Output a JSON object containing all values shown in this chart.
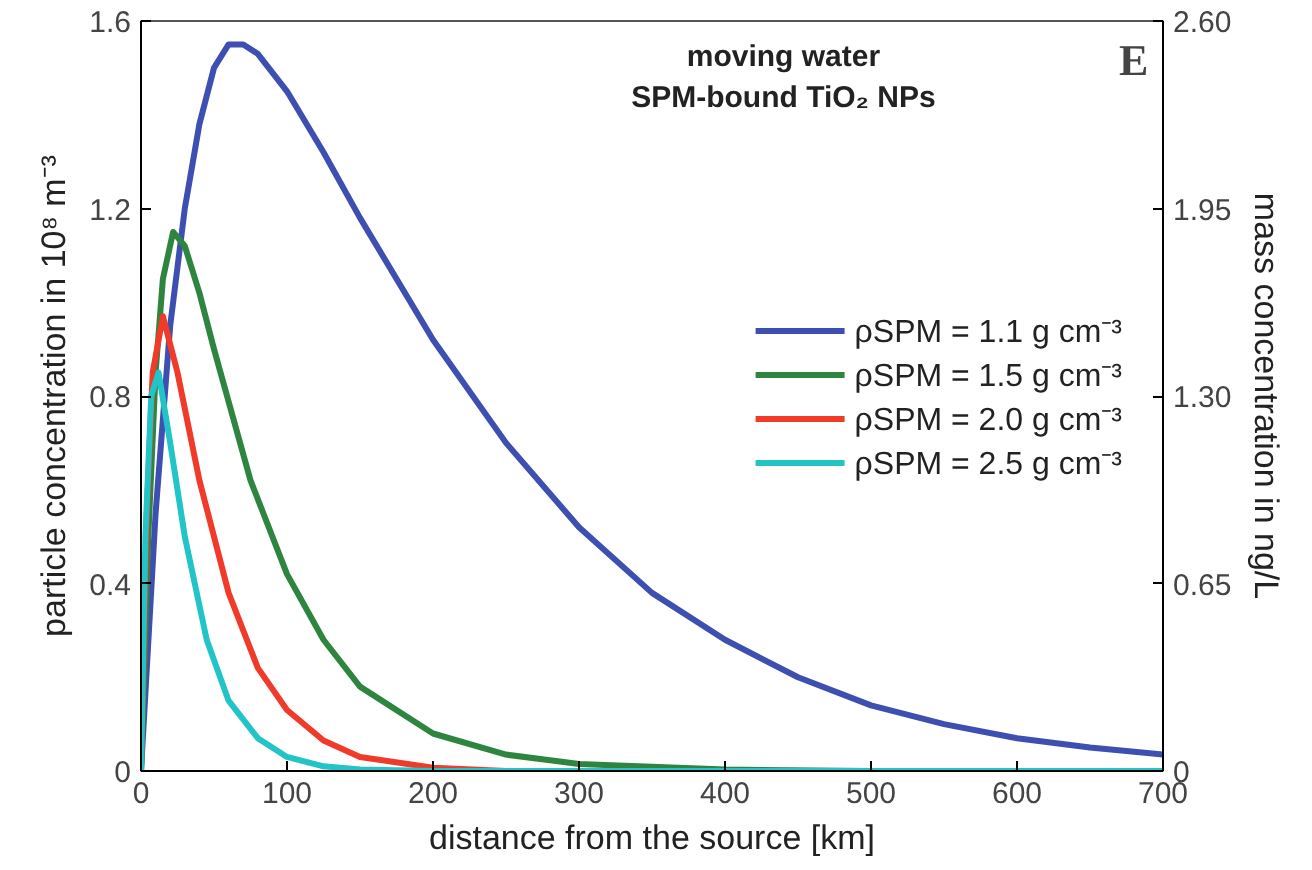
{
  "chart_data": {
    "type": "line",
    "title": "moving water\nSPM-bound TiO₂ NPs",
    "annotations": [
      "E"
    ],
    "xlabel": "distance from the source [km]",
    "ylabel": "particle concentration in 10⁸ m⁻³",
    "y2label": "mass concentration in ng/L",
    "xlim": [
      0,
      700
    ],
    "xticks": [
      0,
      100,
      200,
      300,
      400,
      500,
      600,
      700
    ],
    "ylim": [
      0,
      1.6
    ],
    "yticks": [
      0,
      0.4,
      0.8,
      1.2,
      1.6
    ],
    "y2lim": [
      0,
      2.6
    ],
    "y2ticks": [
      0,
      {
        "value": 0.65,
        "label": "0.65"
      },
      {
        "value": 1.3,
        "label": "1.30"
      },
      {
        "value": 1.95,
        "label": "1.95"
      },
      {
        "value": 2.6,
        "label": "2.60"
      }
    ],
    "grid": false,
    "legend": "right",
    "line_style": "solid",
    "marker": "none",
    "series": [
      {
        "name": "ρSPM = 1.1 g cm⁻³",
        "color": "#3d4fb0",
        "x": [
          0,
          10,
          20,
          30,
          40,
          50,
          60,
          70,
          80,
          100,
          125,
          150,
          200,
          250,
          300,
          350,
          400,
          450,
          500,
          550,
          600,
          650,
          700
        ],
        "values": [
          0,
          0.55,
          0.95,
          1.2,
          1.38,
          1.5,
          1.55,
          1.55,
          1.53,
          1.45,
          1.32,
          1.18,
          0.92,
          0.7,
          0.52,
          0.38,
          0.28,
          0.2,
          0.14,
          0.1,
          0.07,
          0.05,
          0.035
        ]
      },
      {
        "name": "ρSPM = 1.5 g cm⁻³",
        "color": "#2e8540",
        "x": [
          0,
          5,
          10,
          15,
          22,
          30,
          40,
          50,
          75,
          100,
          125,
          150,
          200,
          250,
          300,
          400,
          500,
          700
        ],
        "values": [
          0,
          0.5,
          0.85,
          1.05,
          1.15,
          1.12,
          1.02,
          0.9,
          0.62,
          0.42,
          0.28,
          0.18,
          0.08,
          0.035,
          0.015,
          0.003,
          0,
          0
        ]
      },
      {
        "name": "ρSPM = 2.0 g cm⁻³",
        "color": "#f03a2a",
        "x": [
          0,
          4,
          8,
          15,
          25,
          40,
          60,
          80,
          100,
          125,
          150,
          200,
          250,
          700
        ],
        "values": [
          0,
          0.55,
          0.85,
          0.97,
          0.85,
          0.62,
          0.38,
          0.22,
          0.13,
          0.065,
          0.03,
          0.007,
          0,
          0
        ]
      },
      {
        "name": "ρSPM = 2.5 g cm⁻³",
        "color": "#22c4c8",
        "x": [
          0,
          3,
          7,
          12,
          20,
          30,
          45,
          60,
          80,
          100,
          125,
          150,
          200,
          700
        ],
        "values": [
          0,
          0.5,
          0.8,
          0.85,
          0.7,
          0.5,
          0.28,
          0.15,
          0.07,
          0.03,
          0.01,
          0.003,
          0,
          0
        ]
      }
    ]
  }
}
